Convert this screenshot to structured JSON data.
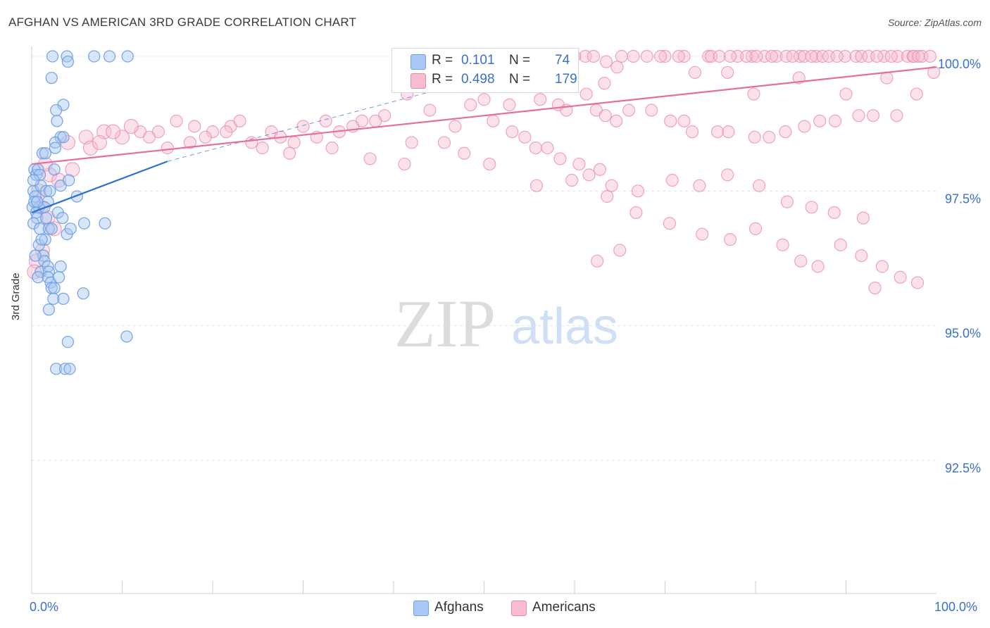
{
  "header": {
    "title": "AFGHAN VS AMERICAN 3RD GRADE CORRELATION CHART",
    "source": "Source: ZipAtlas.com"
  },
  "watermark": {
    "zip": "ZIP",
    "atlas": "atlas"
  },
  "legend": {
    "rows": [
      {
        "r_label": "R =",
        "r_value": "0.101",
        "n_label": "N =",
        "n_value": "74",
        "color": "#a8c8f5",
        "border": "#6e9fe0"
      },
      {
        "r_label": "R =",
        "r_value": "0.498",
        "n_label": "N =",
        "n_value": "179",
        "color": "#f7bcd0",
        "border": "#e98aab"
      }
    ]
  },
  "bottom_legend": [
    {
      "label": "Afghans",
      "color": "#a8c8f5",
      "border": "#6e9fe0"
    },
    {
      "label": "Americans",
      "color": "#f7bcd0",
      "border": "#e98aab"
    }
  ],
  "chart_data": {
    "type": "scatter",
    "ylabel": "3rd Grade",
    "xlim": [
      0,
      100
    ],
    "ylim": [
      90.5,
      100.2
    ],
    "x_tick_labels": [
      "0.0%",
      "100.0%"
    ],
    "y_ticks": [
      {
        "value": 92.5,
        "label": "92.5%"
      },
      {
        "value": 95.0,
        "label": "95.0%"
      },
      {
        "value": 97.5,
        "label": "97.5%"
      },
      {
        "value": 100.0,
        "label": "100.0%"
      }
    ],
    "grid": true,
    "colors": {
      "afghans": "#6e9fe0",
      "afghans_fill": "#a8c8f5",
      "americans": "#e98aab",
      "americans_fill": "#f7bcd0",
      "afghans_line": "#2f6fd0",
      "americans_line": "#e56e9a",
      "tick": "#3a6fd0"
    },
    "series": [
      {
        "name": "Afghans",
        "points": [
          [
            2.3,
            100
          ],
          [
            3.9,
            100
          ],
          [
            6.9,
            100
          ],
          [
            8.6,
            100
          ],
          [
            10.6,
            100
          ],
          [
            4.0,
            99.9
          ],
          [
            2.2,
            99.6
          ],
          [
            3.5,
            99.1
          ],
          [
            2.7,
            99.0
          ],
          [
            2.8,
            98.8
          ],
          [
            3.2,
            98.5
          ],
          [
            2.6,
            98.4
          ],
          [
            3.5,
            98.5
          ],
          [
            1.2,
            98.2
          ],
          [
            1.5,
            98.2
          ],
          [
            2.6,
            98.3
          ],
          [
            0.3,
            97.9
          ],
          [
            0.5,
            97.8
          ],
          [
            0.7,
            97.9
          ],
          [
            0.9,
            97.8
          ],
          [
            2.5,
            97.9
          ],
          [
            3.2,
            97.6
          ],
          [
            4.1,
            97.7
          ],
          [
            0.2,
            97.5
          ],
          [
            0.4,
            97.4
          ],
          [
            0.8,
            97.2
          ],
          [
            1.0,
            97.6
          ],
          [
            1.6,
            97.5
          ],
          [
            1.8,
            97.3
          ],
          [
            2.0,
            97.5
          ],
          [
            0.1,
            97.2
          ],
          [
            0.3,
            97.3
          ],
          [
            0.5,
            97.1
          ],
          [
            0.6,
            97.0
          ],
          [
            1.4,
            97.2
          ],
          [
            1.6,
            97.0
          ],
          [
            2.9,
            97.1
          ],
          [
            3.4,
            97.0
          ],
          [
            5.0,
            97.4
          ],
          [
            0.2,
            96.9
          ],
          [
            0.9,
            96.8
          ],
          [
            1.9,
            96.8
          ],
          [
            2.2,
            96.8
          ],
          [
            3.9,
            96.7
          ],
          [
            4.3,
            96.8
          ],
          [
            5.8,
            96.9
          ],
          [
            8.1,
            96.9
          ],
          [
            0.8,
            96.5
          ],
          [
            1.5,
            96.6
          ],
          [
            1.3,
            96.3
          ],
          [
            1.4,
            96.2
          ],
          [
            1.0,
            96.0
          ],
          [
            1.8,
            96.1
          ],
          [
            1.9,
            96.0
          ],
          [
            3.2,
            96.1
          ],
          [
            0.7,
            95.9
          ],
          [
            1.8,
            95.9
          ],
          [
            2.1,
            95.8
          ],
          [
            3.0,
            95.9
          ],
          [
            2.2,
            95.7
          ],
          [
            2.5,
            95.7
          ],
          [
            5.7,
            95.6
          ],
          [
            2.4,
            95.5
          ],
          [
            3.5,
            95.5
          ],
          [
            1.9,
            95.3
          ],
          [
            10.5,
            94.8
          ],
          [
            4.0,
            94.7
          ],
          [
            2.7,
            94.2
          ],
          [
            3.7,
            94.2
          ],
          [
            4.2,
            94.2
          ],
          [
            0.4,
            96.3
          ],
          [
            0.2,
            97.7
          ],
          [
            0.6,
            97.3
          ],
          [
            1.1,
            96.6
          ]
        ]
      },
      {
        "name": "Americans",
        "points": [
          [
            61.2,
            100
          ],
          [
            62.1,
            100
          ],
          [
            65.2,
            100
          ],
          [
            66.5,
            100
          ],
          [
            70.0,
            100
          ],
          [
            72.1,
            100
          ],
          [
            74.8,
            100
          ],
          [
            75.1,
            100
          ],
          [
            79.6,
            100
          ],
          [
            81.0,
            100
          ],
          [
            82.3,
            100
          ],
          [
            83.4,
            100
          ],
          [
            84.9,
            100
          ],
          [
            85.4,
            100
          ],
          [
            86.7,
            100
          ],
          [
            87.4,
            100
          ],
          [
            89.9,
            100
          ],
          [
            91.1,
            100
          ],
          [
            91.7,
            100
          ],
          [
            92.5,
            100
          ],
          [
            94.2,
            100
          ],
          [
            95.7,
            100
          ],
          [
            96.8,
            100
          ],
          [
            97.4,
            100
          ],
          [
            97.5,
            100
          ],
          [
            98.0,
            100
          ],
          [
            98.4,
            100
          ],
          [
            99.3,
            100
          ],
          [
            56.0,
            99.9
          ],
          [
            57.8,
            99.9
          ],
          [
            63.5,
            99.9
          ],
          [
            64.7,
            99.8
          ],
          [
            88.1,
            100
          ],
          [
            89.0,
            100
          ],
          [
            93.4,
            100
          ],
          [
            95.0,
            100
          ],
          [
            78.0,
            100
          ],
          [
            79.0,
            100
          ],
          [
            80.1,
            100
          ],
          [
            81.8,
            100
          ],
          [
            69.5,
            100
          ],
          [
            71.5,
            100
          ],
          [
            76.0,
            100
          ],
          [
            77.2,
            100
          ],
          [
            84.1,
            100
          ],
          [
            86.2,
            100
          ],
          [
            60.0,
            100
          ],
          [
            59.0,
            100
          ],
          [
            58.4,
            100
          ],
          [
            68.0,
            100
          ],
          [
            73.3,
            99.7
          ],
          [
            76.9,
            99.7
          ],
          [
            84.8,
            99.6
          ],
          [
            49.2,
            99.6
          ],
          [
            63.3,
            99.5
          ],
          [
            94.5,
            99.6
          ],
          [
            99.7,
            99.7
          ],
          [
            79.8,
            99.3
          ],
          [
            90.0,
            99.3
          ],
          [
            97.8,
            99.3
          ],
          [
            41.5,
            99.3
          ],
          [
            50.0,
            99.2
          ],
          [
            52.8,
            99.1
          ],
          [
            56.2,
            99.2
          ],
          [
            58.2,
            99.1
          ],
          [
            59.1,
            99.0
          ],
          [
            61.3,
            99.3
          ],
          [
            62.4,
            99.0
          ],
          [
            63.4,
            98.9
          ],
          [
            64.6,
            98.8
          ],
          [
            66.0,
            99.0
          ],
          [
            68.5,
            99.0
          ],
          [
            70.6,
            98.8
          ],
          [
            72.1,
            98.8
          ],
          [
            73.0,
            98.6
          ],
          [
            75.8,
            98.6
          ],
          [
            77.0,
            98.6
          ],
          [
            79.9,
            98.5
          ],
          [
            81.5,
            98.5
          ],
          [
            83.3,
            98.6
          ],
          [
            85.4,
            98.7
          ],
          [
            87.1,
            98.8
          ],
          [
            88.8,
            98.8
          ],
          [
            91.4,
            98.9
          ],
          [
            93.0,
            98.9
          ],
          [
            95.6,
            98.9
          ],
          [
            39.0,
            98.9
          ],
          [
            36.5,
            98.8
          ],
          [
            34.0,
            98.6
          ],
          [
            31.5,
            98.5
          ],
          [
            29.0,
            98.4
          ],
          [
            26.5,
            98.6
          ],
          [
            24.3,
            98.4
          ],
          [
            22.0,
            98.7
          ],
          [
            20.0,
            98.6
          ],
          [
            18.0,
            98.7
          ],
          [
            16.0,
            98.8
          ],
          [
            14.0,
            98.6
          ],
          [
            12.0,
            98.6
          ],
          [
            10.0,
            98.5
          ],
          [
            8.0,
            98.6
          ],
          [
            6.0,
            98.5
          ],
          [
            4.0,
            98.4
          ],
          [
            25.5,
            98.3
          ],
          [
            28.5,
            98.2
          ],
          [
            33.2,
            98.3
          ],
          [
            37.4,
            98.1
          ],
          [
            41.2,
            98.0
          ],
          [
            45.6,
            98.4
          ],
          [
            47.8,
            98.2
          ],
          [
            53.1,
            98.6
          ],
          [
            55.7,
            98.3
          ],
          [
            58.4,
            98.1
          ],
          [
            61.6,
            97.8
          ],
          [
            64.1,
            97.6
          ],
          [
            67.0,
            97.5
          ],
          [
            70.8,
            97.7
          ],
          [
            73.8,
            97.6
          ],
          [
            76.9,
            97.8
          ],
          [
            80.4,
            97.6
          ],
          [
            83.5,
            97.3
          ],
          [
            86.2,
            97.2
          ],
          [
            88.7,
            97.1
          ],
          [
            91.9,
            97.0
          ],
          [
            50.6,
            98.0
          ],
          [
            55.8,
            97.6
          ],
          [
            59.7,
            97.7
          ],
          [
            63.6,
            97.4
          ],
          [
            66.8,
            97.1
          ],
          [
            70.5,
            96.9
          ],
          [
            74.1,
            96.7
          ],
          [
            77.2,
            96.6
          ],
          [
            80.0,
            96.8
          ],
          [
            83.0,
            96.5
          ],
          [
            85.0,
            96.2
          ],
          [
            86.9,
            96.1
          ],
          [
            89.4,
            96.5
          ],
          [
            91.7,
            96.3
          ],
          [
            94.0,
            96.1
          ],
          [
            96.0,
            95.9
          ],
          [
            97.9,
            95.8
          ],
          [
            93.2,
            95.7
          ],
          [
            65.0,
            96.4
          ],
          [
            62.5,
            96.2
          ],
          [
            2.0,
            97.8
          ],
          [
            3.0,
            97.7
          ],
          [
            4.5,
            97.9
          ],
          [
            1.5,
            98.0
          ],
          [
            0.8,
            97.5
          ],
          [
            1.0,
            97.2
          ],
          [
            1.8,
            97.0
          ],
          [
            2.5,
            96.8
          ],
          [
            0.5,
            96.2
          ],
          [
            0.3,
            96.0
          ],
          [
            1.2,
            96.4
          ],
          [
            6.5,
            98.3
          ],
          [
            7.5,
            98.4
          ],
          [
            9.0,
            98.6
          ],
          [
            11.0,
            98.7
          ],
          [
            13.0,
            98.5
          ],
          [
            15.0,
            98.3
          ],
          [
            17.5,
            98.4
          ],
          [
            19.2,
            98.5
          ],
          [
            21.5,
            98.6
          ],
          [
            23.0,
            98.8
          ],
          [
            27.5,
            98.5
          ],
          [
            30.0,
            98.7
          ],
          [
            32.5,
            98.8
          ],
          [
            35.5,
            98.7
          ],
          [
            38.0,
            98.8
          ],
          [
            42.0,
            98.4
          ],
          [
            44.0,
            99.0
          ],
          [
            46.8,
            98.7
          ],
          [
            48.5,
            99.1
          ],
          [
            51.0,
            98.8
          ],
          [
            54.5,
            98.5
          ],
          [
            57.0,
            98.3
          ],
          [
            60.5,
            98.0
          ],
          [
            62.8,
            97.9
          ]
        ]
      }
    ],
    "trend_lines": [
      {
        "series": "Afghans",
        "from": [
          0,
          97.1
        ],
        "to": [
          15,
          98.05
        ],
        "dashed_to": [
          60,
          100.05
        ]
      },
      {
        "series": "Americans",
        "from": [
          0,
          98.0
        ],
        "to": [
          100,
          99.8
        ]
      }
    ]
  }
}
